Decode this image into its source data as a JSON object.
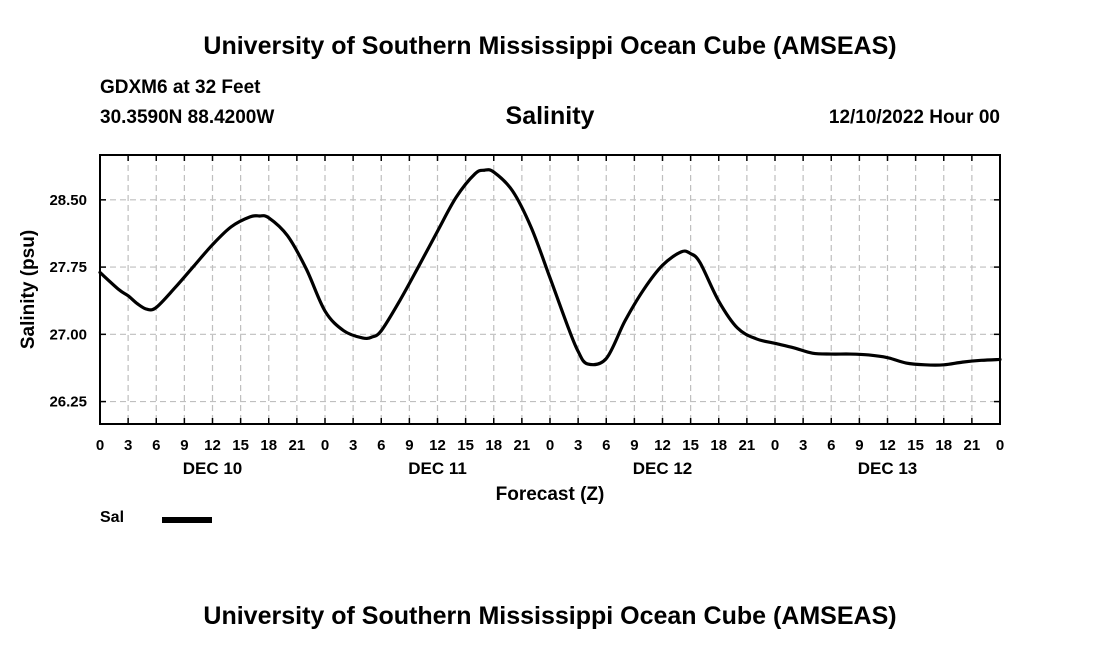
{
  "header": {
    "title": "University of Southern Mississippi Ocean Cube (AMSEAS)",
    "station": "GDXM6 at 32 Feet",
    "coords": "30.3590N  88.4200W",
    "chart_title": "Salinity",
    "datetime": "12/10/2022 Hour 00"
  },
  "footer": {
    "title": "University of Southern Mississippi Ocean Cube (AMSEAS)"
  },
  "legend": {
    "label": "Sal"
  },
  "colors": {
    "line": "#000000",
    "grid": "#bfbfbf"
  },
  "chart_data": {
    "type": "line",
    "title": "Salinity",
    "xlabel": "Forecast (Z)",
    "ylabel": "Salinity (psu)",
    "xlim": [
      0,
      96
    ],
    "ylim": [
      26.0,
      29.0
    ],
    "yticks": [
      26.25,
      27.0,
      27.75,
      28.5
    ],
    "ytick_labels": [
      "26.25",
      "27.00",
      "27.75",
      "28.50"
    ],
    "xticks": [
      0,
      3,
      6,
      9,
      12,
      15,
      18,
      21,
      24,
      27,
      30,
      33,
      36,
      39,
      42,
      45,
      48,
      51,
      54,
      57,
      60,
      63,
      66,
      69,
      72,
      75,
      78,
      81,
      84,
      87,
      90,
      93,
      96
    ],
    "xtick_labels": [
      "0",
      "3",
      "6",
      "9",
      "12",
      "15",
      "18",
      "21",
      "0",
      "3",
      "6",
      "9",
      "12",
      "15",
      "18",
      "21",
      "0",
      "3",
      "6",
      "9",
      "12",
      "15",
      "18",
      "21",
      "0",
      "3",
      "6",
      "9",
      "12",
      "15",
      "18",
      "21",
      "0"
    ],
    "day_labels": [
      {
        "x": 12,
        "label": "DEC 10"
      },
      {
        "x": 36,
        "label": "DEC 11"
      },
      {
        "x": 60,
        "label": "DEC 12"
      },
      {
        "x": 84,
        "label": "DEC 13"
      }
    ],
    "grid": true,
    "series": [
      {
        "name": "Sal",
        "x": [
          0,
          2,
          3,
          4,
          5,
          6,
          8,
          10,
          12,
          14,
          16,
          17,
          18,
          20,
          22,
          24,
          26,
          28,
          29,
          30,
          32,
          34,
          36,
          38,
          40,
          41,
          42,
          44,
          46,
          48,
          50,
          51,
          52,
          54,
          56,
          58,
          60,
          62,
          63,
          64,
          66,
          68,
          70,
          72,
          74,
          76,
          78,
          80,
          82,
          84,
          86,
          88,
          90,
          92,
          94,
          96
        ],
        "values": [
          27.69,
          27.5,
          27.43,
          27.34,
          27.28,
          27.3,
          27.52,
          27.76,
          28.0,
          28.2,
          28.31,
          28.32,
          28.3,
          28.1,
          27.73,
          27.26,
          27.04,
          26.96,
          26.97,
          27.04,
          27.38,
          27.76,
          28.15,
          28.53,
          28.79,
          28.83,
          28.81,
          28.6,
          28.19,
          27.63,
          27.06,
          26.81,
          26.67,
          26.73,
          27.15,
          27.5,
          27.77,
          27.92,
          27.9,
          27.8,
          27.37,
          27.07,
          26.95,
          26.9,
          26.85,
          26.79,
          26.78,
          26.78,
          26.77,
          26.74,
          26.68,
          26.66,
          26.66,
          26.69,
          26.71,
          26.72
        ]
      }
    ]
  }
}
